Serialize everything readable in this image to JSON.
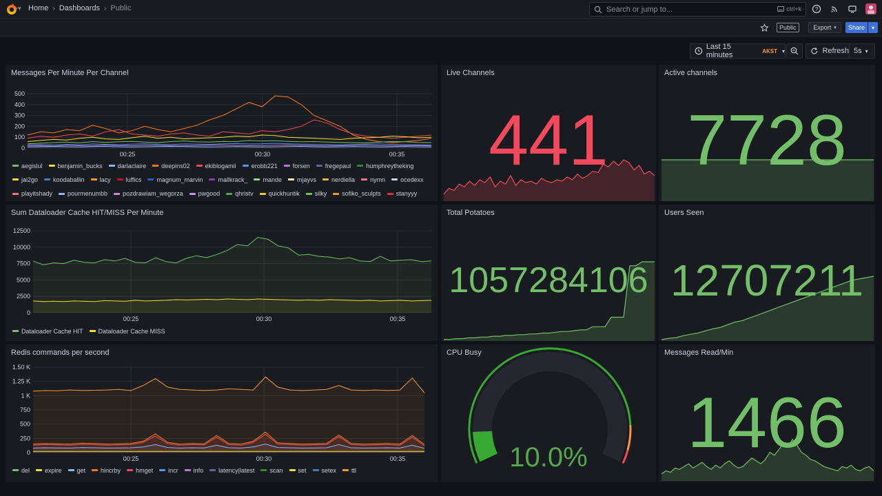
{
  "nav": {
    "breadcrumbs": [
      "Home",
      "Dashboards",
      "Public"
    ],
    "search_placeholder": "Search or jump to...",
    "search_shortcut": "ctrl+k"
  },
  "subbar": {
    "public_badge": "Public",
    "export_label": "Export",
    "share_label": "Share"
  },
  "time": {
    "range_label": "Last 15 minutes",
    "timezone": "AKST",
    "refresh_label": "Refresh",
    "interval": "5s"
  },
  "colors": {
    "green": "#73bf69",
    "red": "#f2495c",
    "yellow": "#fade2a",
    "orange": "#ff9830"
  },
  "panels": {
    "messages_per_minute": {
      "title": "Messages Per Minute Per Channel",
      "legend": [
        {
          "name": "aegislul",
          "color": "#73bf69"
        },
        {
          "name": "benjamin_bucks",
          "color": "#fade2a"
        },
        {
          "name": "darlaclaire",
          "color": "#8ab8ff"
        },
        {
          "name": "deepins02",
          "color": "#ff780a"
        },
        {
          "name": "ekiblogamii",
          "color": "#f2495c"
        },
        {
          "name": "erobb221",
          "color": "#5794f2"
        },
        {
          "name": "forsen",
          "color": "#b877d9"
        },
        {
          "name": "fregepaul",
          "color": "#705da0"
        },
        {
          "name": "humphreytheking",
          "color": "#37872d"
        },
        {
          "name": "jai2go",
          "color": "#fade2a"
        },
        {
          "name": "koodaballin",
          "color": "#447ebc"
        },
        {
          "name": "lacy",
          "color": "#ff9830"
        },
        {
          "name": "luffics",
          "color": "#c4162a"
        },
        {
          "name": "magnum_marvin",
          "color": "#1f60c4"
        },
        {
          "name": "mallkrack_",
          "color": "#8f3bb8"
        },
        {
          "name": "mande",
          "color": "#96d98d"
        },
        {
          "name": "mjayvs",
          "color": "#fff899"
        },
        {
          "name": "nerdiella",
          "color": "#ffb357"
        },
        {
          "name": "nymn",
          "color": "#ff7383"
        },
        {
          "name": "ocedexx",
          "color": "#c0d8ff"
        },
        {
          "name": "playitshady",
          "color": "#ff7383"
        },
        {
          "name": "pourmenumbb",
          "color": "#8ab8ff"
        },
        {
          "name": "pozdrawiam_wegorza",
          "color": "#d683ce"
        },
        {
          "name": "pwgood",
          "color": "#ca95e5"
        },
        {
          "name": "qhristv",
          "color": "#56a64b"
        },
        {
          "name": "quickhuntik",
          "color": "#f2cc0c"
        },
        {
          "name": "silky",
          "color": "#73bf69"
        },
        {
          "name": "sofiko_sculpts",
          "color": "#ff9830"
        },
        {
          "name": "stanyyy",
          "color": "#e02f44"
        }
      ],
      "chart_data": {
        "type": "line",
        "y_ticks": [
          "500",
          "400",
          "300",
          "200",
          "100",
          "0"
        ],
        "x_ticks": [
          "00:25",
          "00:30",
          "00:35"
        ],
        "ylim": [
          0,
          500
        ],
        "series": [
          {
            "color": "#ff780a",
            "values": [
              120,
              150,
              140,
              170,
              160,
              210,
              180,
              140,
              160,
              200,
              170,
              150,
              180,
              210,
              260,
              300,
              360,
              420,
              380,
              480,
              470,
              400,
              300,
              250,
              200,
              120,
              80,
              60,
              50,
              60,
              70,
              90
            ]
          },
          {
            "color": "#f2495c",
            "values": [
              90,
              110,
              100,
              120,
              130,
              110,
              150,
              170,
              130,
              120,
              110,
              130,
              140,
              120,
              110,
              150,
              140,
              130,
              160,
              150,
              170,
              200,
              260,
              230,
              170,
              130,
              110,
              100,
              90,
              100,
              110,
              120
            ]
          },
          {
            "color": "#fade2a",
            "values": [
              60,
              70,
              80,
              75,
              90,
              100,
              85,
              80,
              95,
              110,
              90,
              100,
              85,
              90,
              95,
              100,
              110,
              105,
              120,
              115,
              100,
              95,
              90,
              85,
              80,
              90,
              95,
              100,
              110,
              105,
              95,
              100
            ]
          },
          {
            "color": "#73bf69",
            "values": [
              40,
              45,
              50,
              55,
              48,
              60,
              52,
              58,
              62,
              55,
              50,
              60,
              66,
              58,
              55,
              62,
              60,
              70,
              65,
              68,
              62,
              58,
              60,
              55,
              52,
              50,
              48,
              55,
              60,
              58,
              52,
              50
            ]
          },
          {
            "color": "#5794f2",
            "values": [
              30,
              32,
              28,
              35,
              30,
              38,
              34,
              30,
              36,
              40,
              35,
              33,
              38,
              36,
              34,
              40,
              42,
              38,
              40,
              44,
              40,
              36,
              34,
              32,
              30,
              34,
              36,
              38,
              34,
              32,
              30,
              28
            ]
          },
          {
            "color": "#b877d9",
            "values": [
              20,
              22,
              18,
              25,
              22,
              20,
              28,
              24,
              22,
              26,
              24,
              22,
              20,
              24,
              26,
              28,
              25,
              22,
              24,
              26,
              28,
              24,
              22,
              20,
              22,
              24,
              26,
              22,
              20,
              22,
              24,
              20
            ]
          },
          {
            "color": "#8ab8ff",
            "values": [
              10,
              12,
              14,
              12,
              10,
              14,
              16,
              12,
              10,
              12,
              14,
              16,
              14,
              12,
              10,
              12,
              14,
              12,
              10,
              12,
              14,
              16,
              12,
              10,
              12,
              14,
              12,
              10,
              12,
              14,
              12,
              10
            ]
          }
        ]
      }
    },
    "cache": {
      "title": "Sum Dataloader Cache HIT/MISS Per Minute",
      "legend": [
        {
          "name": "Dataloader Cache HIT",
          "color": "#73bf69"
        },
        {
          "name": "Dataloader Cache MISS",
          "color": "#fade2a"
        }
      ],
      "chart_data": {
        "type": "line",
        "y_ticks": [
          "12500",
          "10000",
          "7500",
          "5000",
          "2500",
          "0"
        ],
        "x_ticks": [
          "00:25",
          "00:30",
          "00:35"
        ],
        "ylim": [
          0,
          12500
        ],
        "series": [
          {
            "name": "Dataloader Cache HIT",
            "color": "#73bf69",
            "values": [
              7900,
              7300,
              7600,
              7500,
              8000,
              7700,
              7600,
              8100,
              7900,
              8300,
              7700,
              7600,
              8400,
              7800,
              7600,
              8300,
              8700,
              8400,
              8900,
              9500,
              10400,
              10200,
              11500,
              11200,
              10200,
              9900,
              8800,
              8900,
              8600,
              8500,
              8200,
              8400,
              7900,
              7800,
              8600,
              7900,
              8000,
              8100,
              7800,
              7900
            ]
          },
          {
            "name": "Dataloader Cache MISS",
            "color": "#fade2a",
            "values": [
              1800,
              1700,
              1750,
              1700,
              1800,
              1750,
              1700,
              1850,
              1800,
              1750,
              1900,
              1800,
              1850,
              1900,
              2000,
              1950,
              2000,
              2050,
              2000,
              2100,
              2050,
              2000,
              2100,
              2050,
              2000,
              1950,
              1900,
              1950,
              1900,
              2000,
              1950,
              1900,
              1850,
              1900,
              1800,
              1850,
              1900,
              1800,
              1850,
              1900
            ]
          }
        ]
      }
    },
    "redis": {
      "title": "Redis commands per second",
      "legend": [
        {
          "name": "del",
          "color": "#73bf69"
        },
        {
          "name": "expire",
          "color": "#fade2a"
        },
        {
          "name": "get",
          "color": "#8ab8ff"
        },
        {
          "name": "hincrby",
          "color": "#ff780a"
        },
        {
          "name": "hmget",
          "color": "#f2495c"
        },
        {
          "name": "incr",
          "color": "#5794f2"
        },
        {
          "name": "info",
          "color": "#b877d9"
        },
        {
          "name": "latency|latest",
          "color": "#705da0"
        },
        {
          "name": "scan",
          "color": "#37872d"
        },
        {
          "name": "set",
          "color": "#fade2a"
        },
        {
          "name": "setex",
          "color": "#447ebc"
        },
        {
          "name": "ttl",
          "color": "#ff9830"
        }
      ],
      "chart_data": {
        "type": "line",
        "y_ticks": [
          "1.50 K",
          "1.25 K",
          "1 K",
          "750",
          "500",
          "250",
          "0"
        ],
        "x_ticks": [
          "00:25",
          "00:30",
          "00:35"
        ],
        "ylim": [
          0,
          1500
        ],
        "series": [
          {
            "name": "ttl",
            "color": "#ff9830",
            "values": [
              1080,
              1090,
              1085,
              1100,
              1090,
              1095,
              1100,
              1110,
              1090,
              1180,
              1300,
              1150,
              1110,
              1100,
              1090,
              1100,
              1120,
              1110,
              1100,
              1330,
              1150,
              1100,
              1090,
              1100,
              1110,
              1180,
              1100,
              1090,
              1100,
              1090,
              1100,
              1310,
              1050
            ]
          },
          {
            "name": "hincrby",
            "color": "#ff780a",
            "values": [
              150,
              160,
              155,
              150,
              165,
              160,
              150,
              155,
              160,
              200,
              330,
              180,
              150,
              160,
              155,
              300,
              160,
              150,
              200,
              360,
              170,
              160,
              150,
              155,
              160,
              310,
              160,
              150,
              155,
              160,
              150,
              300,
              140
            ]
          },
          {
            "name": "hmget",
            "color": "#f2495c",
            "values": [
              130,
              140,
              135,
              130,
              145,
              140,
              130,
              135,
              140,
              180,
              290,
              160,
              130,
              140,
              135,
              270,
              140,
              130,
              180,
              320,
              150,
              140,
              130,
              135,
              140,
              280,
              140,
              130,
              135,
              140,
              130,
              270,
              120
            ]
          },
          {
            "name": "get",
            "color": "#8ab8ff",
            "values": [
              80,
              85,
              82,
              80,
              88,
              85,
              80,
              82,
              85,
              100,
              140,
              90,
              80,
              85,
              82,
              130,
              85,
              80,
              100,
              150,
              90,
              85,
              80,
              82,
              85,
              140,
              85,
              80,
              82,
              85,
              80,
              130,
              75
            ]
          },
          {
            "name": "expire",
            "color": "#fade2a",
            "values": [
              20,
              20,
              22,
              20,
              21,
              20,
              22,
              20,
              21,
              22,
              20,
              21,
              20,
              22,
              20,
              21,
              20,
              22,
              20,
              21,
              22,
              20,
              21,
              20,
              22,
              20,
              21,
              20,
              22,
              20,
              21,
              20,
              22
            ]
          }
        ]
      }
    },
    "live_channels": {
      "title": "Live Channels",
      "value": "441",
      "color": "#f2495c",
      "spark_values": [
        10,
        18,
        15,
        24,
        20,
        28,
        22,
        30,
        26,
        34,
        20,
        28,
        24,
        36,
        22,
        30,
        26,
        28,
        24,
        32,
        28,
        26,
        30,
        28,
        34,
        30,
        38,
        32,
        36,
        42,
        40,
        52,
        48,
        56,
        50,
        58,
        54,
        44,
        50,
        38,
        42,
        36
      ]
    },
    "active_channels": {
      "title": "Active channels",
      "value": "7728",
      "color": "#73bf69",
      "spark_values": [
        28,
        28,
        28,
        28,
        28,
        28,
        28,
        28,
        28,
        28,
        28,
        28,
        28,
        28,
        28,
        28,
        28,
        28,
        28,
        28
      ]
    },
    "total_potatoes": {
      "title": "Total Potatoes",
      "value": "1057284106",
      "color": "#73bf69",
      "spark_values": [
        2,
        2,
        3,
        3,
        4,
        4,
        5,
        5,
        6,
        6,
        7,
        7,
        8,
        8,
        9,
        9,
        10,
        10,
        11,
        12,
        12,
        13,
        14,
        14,
        18,
        18,
        18,
        30,
        30,
        30,
        95,
        95,
        100,
        100,
        100
      ]
    },
    "users_seen": {
      "title": "Users Seen",
      "value": "12707211",
      "color": "#73bf69",
      "spark_values": [
        2,
        4,
        5,
        8,
        10,
        12,
        15,
        18,
        20,
        24,
        28,
        30,
        34,
        38,
        42,
        46,
        50,
        54,
        58,
        62,
        66,
        70,
        74,
        78,
        82,
        86,
        90,
        92,
        94,
        96
      ]
    },
    "cpu_busy": {
      "title": "CPU Busy",
      "value": "10.0%",
      "percent": 10.0
    },
    "messages_read": {
      "title": "Messages Read/Min",
      "value": "1466",
      "color": "#73bf69",
      "spark_values": [
        10,
        14,
        12,
        18,
        16,
        20,
        24,
        18,
        22,
        26,
        20,
        16,
        22,
        18,
        24,
        28,
        22,
        18,
        20,
        26,
        32,
        28,
        24,
        30,
        40,
        36,
        44,
        52,
        48,
        58,
        50,
        40,
        36,
        30,
        28,
        24,
        20,
        18,
        16,
        14,
        20,
        18,
        22,
        16,
        14,
        18,
        20,
        14
      ]
    }
  }
}
